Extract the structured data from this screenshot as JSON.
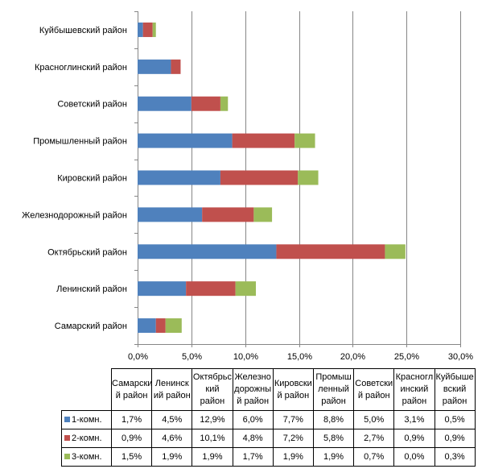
{
  "chart_data": {
    "type": "bar",
    "orientation": "horizontal",
    "stacked": true,
    "categories": [
      "Самарский район",
      "Ленинский район",
      "Октябрьский район",
      "Железнодорожный район",
      "Кировский район",
      "Промышленный район",
      "Советский район",
      "Красноглинский район",
      "Куйбышевский район"
    ],
    "table_headers": [
      "Самарски й район",
      "Ленинск ий район",
      "Октябрьс кий район",
      "Железно дорожны й район",
      "Кировски й район",
      "Промыш ленный район",
      "Советски й район",
      "Красногл инский район",
      "Куйбыше вский район"
    ],
    "series": [
      {
        "name": "1-комн.",
        "color": "#4f81bd",
        "values": [
          1.7,
          4.5,
          12.9,
          6.0,
          7.7,
          8.8,
          5.0,
          3.1,
          0.5
        ],
        "labels": [
          "1,7%",
          "4,5%",
          "12,9%",
          "6,0%",
          "7,7%",
          "8,8%",
          "5,0%",
          "3,1%",
          "0,5%"
        ]
      },
      {
        "name": "2-комн.",
        "color": "#c0504d",
        "values": [
          0.9,
          4.6,
          10.1,
          4.8,
          7.2,
          5.8,
          2.7,
          0.9,
          0.9
        ],
        "labels": [
          "0,9%",
          "4,6%",
          "10,1%",
          "4,8%",
          "7,2%",
          "5,8%",
          "2,7%",
          "0,9%",
          "0,9%"
        ]
      },
      {
        "name": "3-комн.",
        "color": "#9bbb59",
        "values": [
          1.5,
          1.9,
          1.9,
          1.7,
          1.9,
          1.9,
          0.7,
          0.0,
          0.3
        ],
        "labels": [
          "1,5%",
          "1,9%",
          "1,9%",
          "1,7%",
          "1,9%",
          "1,9%",
          "0,7%",
          "0,0%",
          "0,3%"
        ]
      }
    ],
    "xlim": [
      0,
      30
    ],
    "x_ticks": [
      0,
      5,
      10,
      15,
      20,
      25,
      30
    ],
    "x_tick_labels": [
      "0,0%",
      "5,0%",
      "10,0%",
      "15,0%",
      "20,0%",
      "25,0%",
      "30,0%"
    ],
    "grid": true,
    "legend": "data-table-below",
    "gridline_color": "#868686"
  }
}
